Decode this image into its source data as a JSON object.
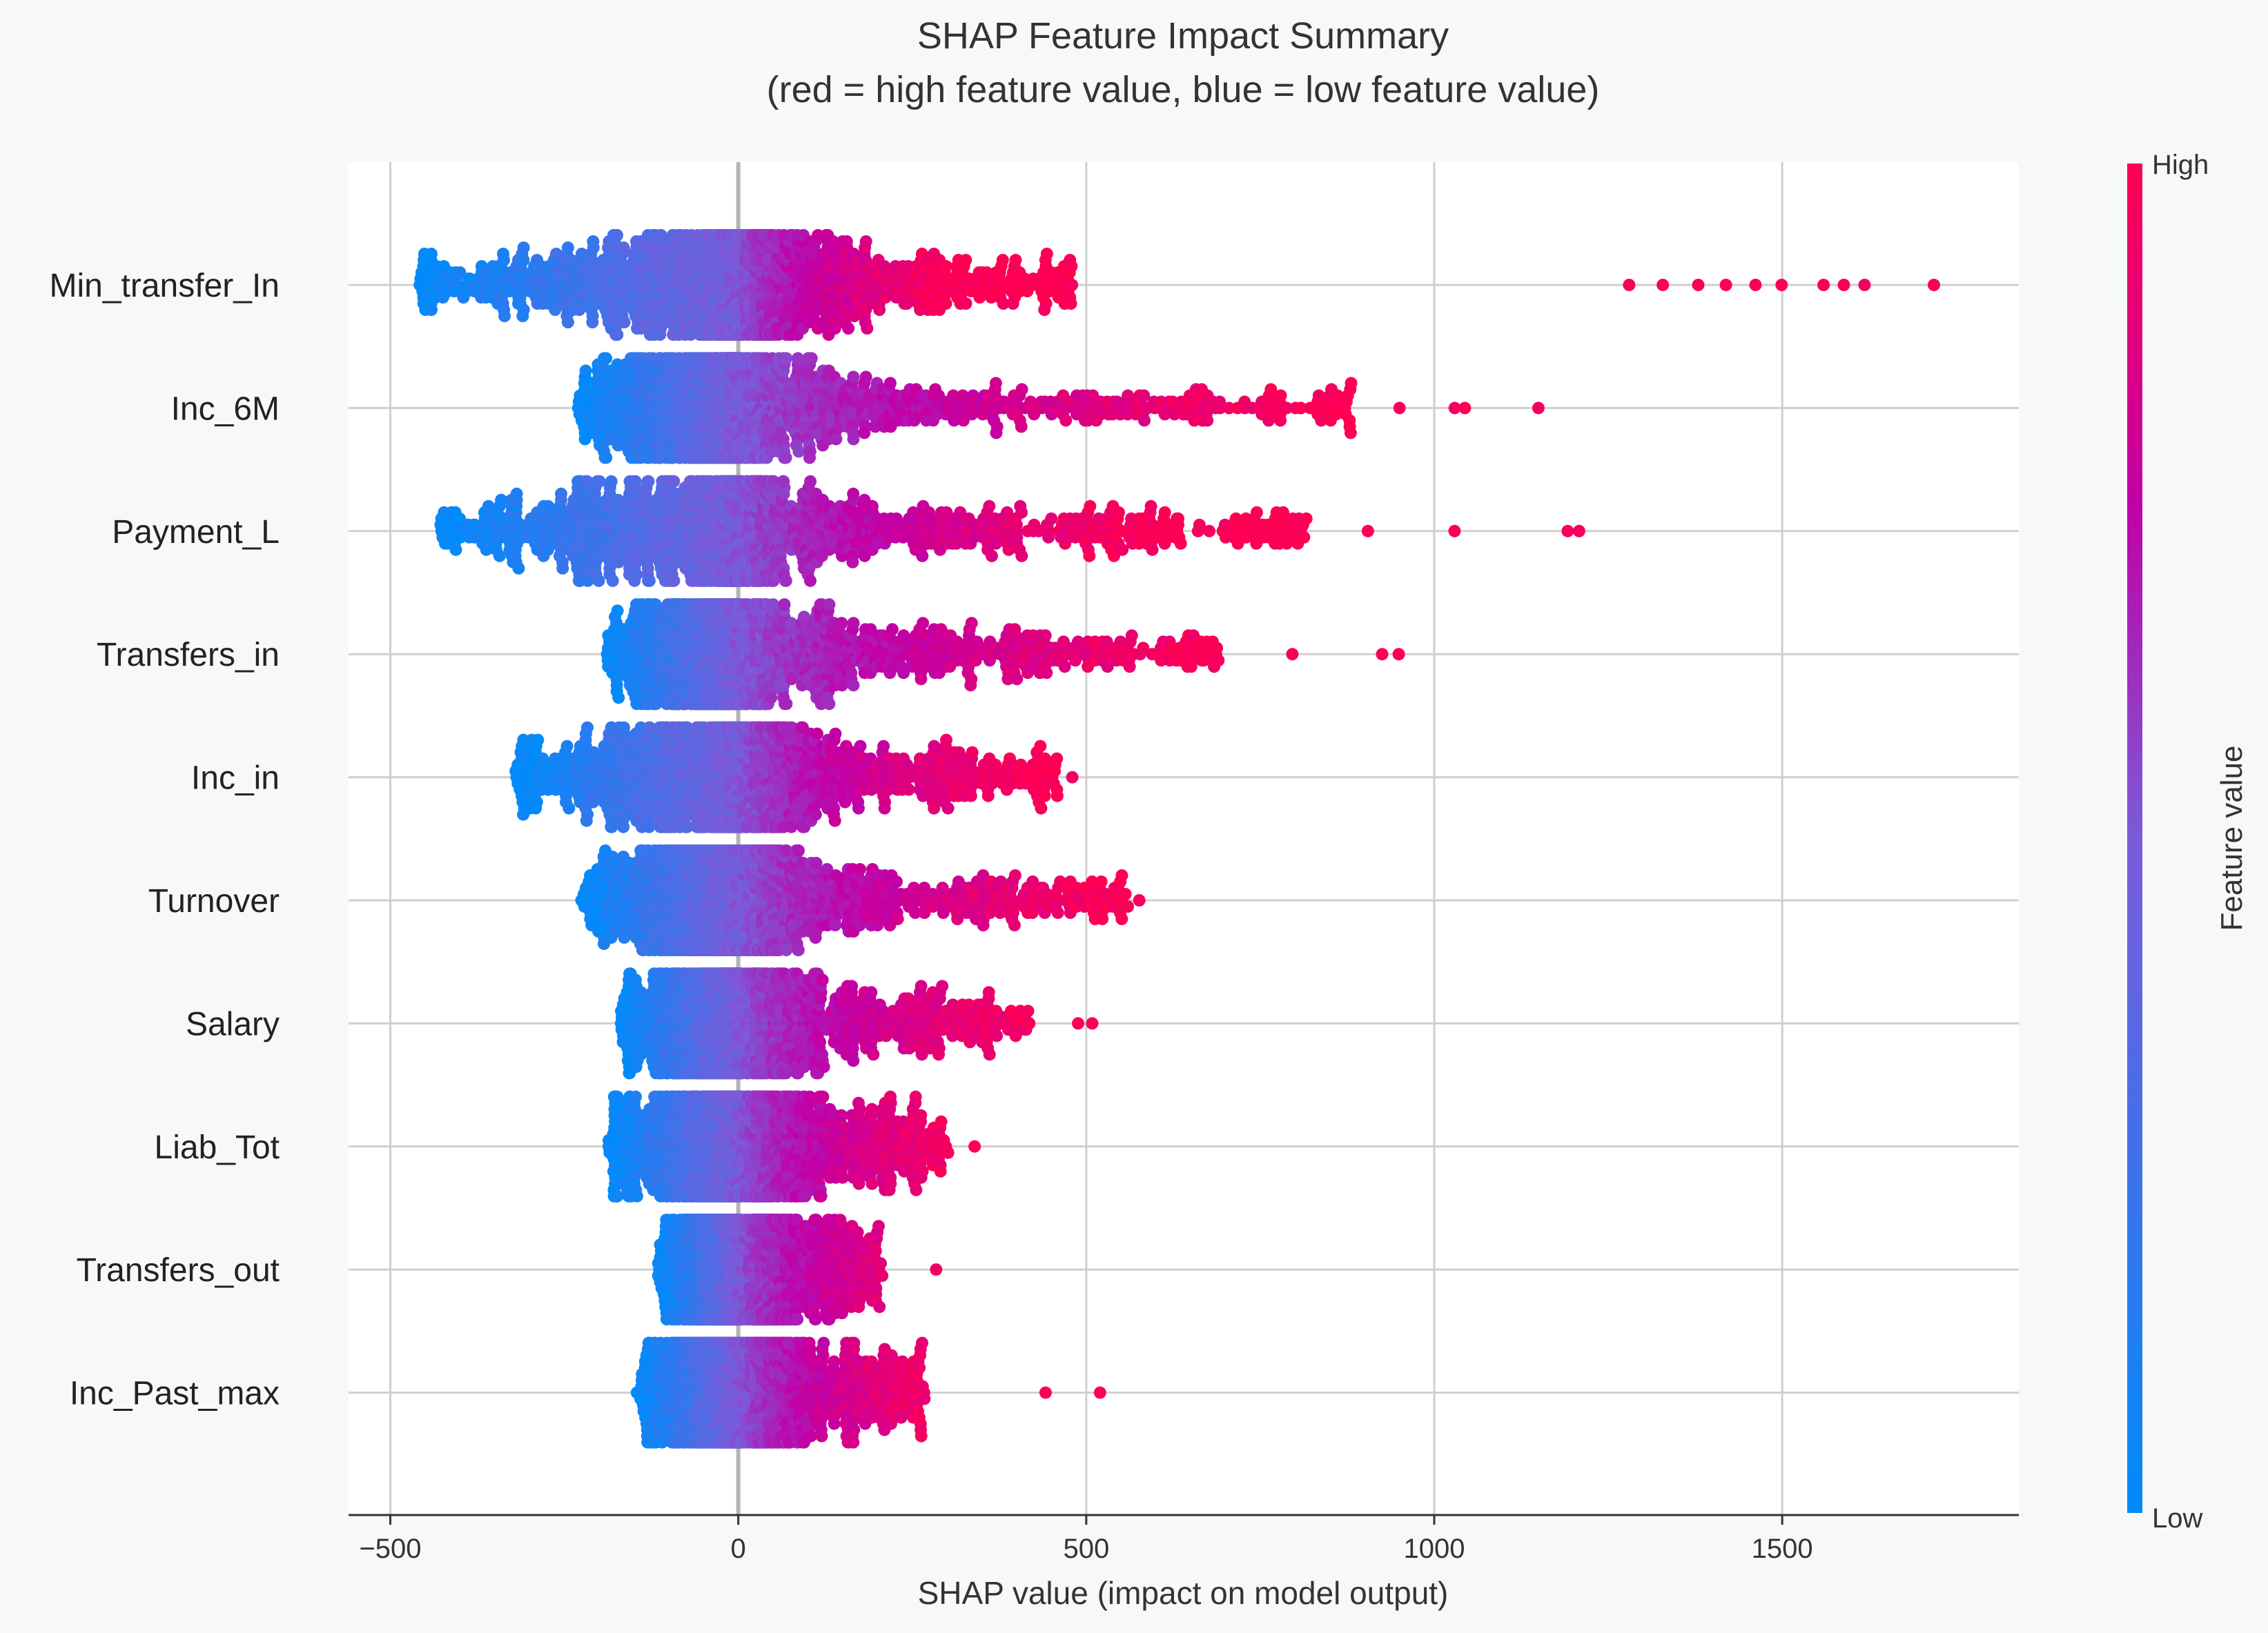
{
  "chart_data": {
    "type": "scatter",
    "subtype": "shap-beeswarm",
    "title_line1": "SHAP Feature Impact Summary",
    "title_line2": "(red = high feature value, blue = low feature value)",
    "xlabel": "SHAP value (impact on model output)",
    "xlim": [
      -560,
      1840
    ],
    "xticks": [
      -500,
      0,
      500,
      1000,
      1500
    ],
    "xtick_labels": [
      "−500",
      "0",
      "500",
      "1000",
      "1500"
    ],
    "grid": true,
    "colorbar": {
      "label": "Feature value",
      "high_label": "High",
      "low_label": "Low",
      "low_color": "#008bfb",
      "high_color": "#ff0052"
    },
    "features": [
      {
        "name": "Min_transfer_In",
        "min": -460,
        "max": 1720,
        "w": 0.22,
        "core_max": 480,
        "outliers": [
          1280,
          1330,
          1380,
          1420,
          1460,
          1500,
          1560,
          1590,
          1620,
          1720
        ]
      },
      {
        "name": "Inc_6M",
        "min": -230,
        "max": 1150,
        "w": 0.32,
        "core_max": 880,
        "outliers": [
          950,
          1030,
          1045,
          1150
        ]
      },
      {
        "name": "Payment_L",
        "min": -430,
        "max": 1210,
        "w": 0.25,
        "core_max": 820,
        "outliers": [
          905,
          1030,
          1190,
          1210
        ]
      },
      {
        "name": "Transfers_in",
        "min": -190,
        "max": 950,
        "w": 0.34,
        "core_max": 690,
        "outliers": [
          795,
          925,
          950
        ]
      },
      {
        "name": "Inc_in",
        "min": -320,
        "max": 480,
        "w": 0.32,
        "core_max": 460,
        "outliers": [
          480
        ]
      },
      {
        "name": "Turnover",
        "min": -225,
        "max": 575,
        "w": 0.34,
        "core_max": 560,
        "outliers": [
          575
        ]
      },
      {
        "name": "Salary",
        "min": -170,
        "max": 510,
        "w": 0.36,
        "core_max": 420,
        "outliers": [
          490,
          510
        ]
      },
      {
        "name": "Liab_Tot",
        "min": -185,
        "max": 340,
        "w": 0.4,
        "core_max": 300,
        "outliers": [
          340
        ]
      },
      {
        "name": "Transfers_out",
        "min": -115,
        "max": 285,
        "w": 0.52,
        "core_max": 205,
        "outliers": [
          285
        ]
      },
      {
        "name": "Inc_Past_max",
        "min": -145,
        "max": 520,
        "w": 0.4,
        "core_max": 270,
        "outliers": [
          440,
          520
        ]
      }
    ]
  }
}
